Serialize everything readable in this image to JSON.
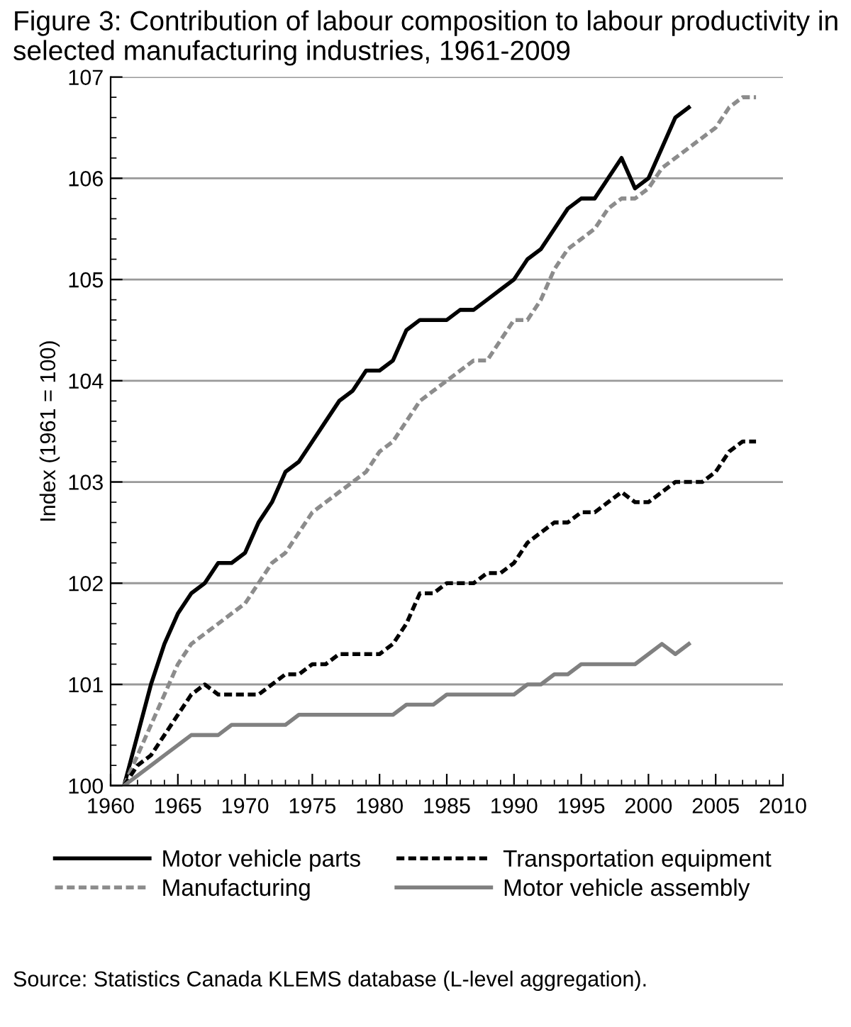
{
  "chart_data": {
    "type": "line",
    "title": "Figure 3: Contribution of labour composition to labour productivity in selected manufacturing industries, 1961-2009",
    "ylabel": "Index (1961 = 100)",
    "xlim": [
      1960,
      2010
    ],
    "xticks": [
      1960,
      1965,
      1970,
      1975,
      1980,
      1985,
      1990,
      1995,
      2000,
      2005,
      2010
    ],
    "ylim": [
      100,
      107
    ],
    "yticks": [
      100,
      101,
      102,
      103,
      104,
      105,
      106,
      107
    ],
    "grid": "y",
    "legend": "bottom",
    "annotations": [
      "Source: Statistics Canada KLEMS database (L-level aggregation)."
    ],
    "series": [
      {
        "name": "Motor vehicle parts",
        "color": "#000000",
        "line_style": "solid",
        "x": [
          1961,
          1962,
          1963,
          1964,
          1965,
          1966,
          1967,
          1968,
          1969,
          1970,
          1971,
          1972,
          1973,
          1974,
          1975,
          1976,
          1977,
          1978,
          1979,
          1980,
          1981,
          1982,
          1983,
          1984,
          1985,
          1986,
          1987,
          1988,
          1989,
          1990,
          1991,
          1992,
          1993,
          1994,
          1995,
          1996,
          1997,
          1998,
          1999,
          2000,
          2001,
          2002,
          2003
        ],
        "values": [
          100,
          100.5,
          101.0,
          101.4,
          101.7,
          101.9,
          102.0,
          102.2,
          102.2,
          102.3,
          102.6,
          102.8,
          103.1,
          103.2,
          103.4,
          103.6,
          103.8,
          103.9,
          104.1,
          104.1,
          104.2,
          104.5,
          104.6,
          104.6,
          104.6,
          104.7,
          104.7,
          104.8,
          104.9,
          105.0,
          105.2,
          105.3,
          105.5,
          105.7,
          105.8,
          105.8,
          106.0,
          106.2,
          105.9,
          106.0,
          106.3,
          106.6,
          106.7
        ]
      },
      {
        "name": "Manufacturing",
        "color": "#8c8c8c",
        "line_style": "dashed",
        "x": [
          1961,
          1962,
          1963,
          1964,
          1965,
          1966,
          1967,
          1968,
          1969,
          1970,
          1971,
          1972,
          1973,
          1974,
          1975,
          1976,
          1977,
          1978,
          1979,
          1980,
          1981,
          1982,
          1983,
          1984,
          1985,
          1986,
          1987,
          1988,
          1989,
          1990,
          1991,
          1992,
          1993,
          1994,
          1995,
          1996,
          1997,
          1998,
          1999,
          2000,
          2001,
          2002,
          2003,
          2004,
          2005,
          2006,
          2007,
          2008
        ],
        "values": [
          100,
          100.3,
          100.6,
          100.9,
          101.2,
          101.4,
          101.5,
          101.6,
          101.7,
          101.8,
          102.0,
          102.2,
          102.3,
          102.5,
          102.7,
          102.8,
          102.9,
          103.0,
          103.1,
          103.3,
          103.4,
          103.6,
          103.8,
          103.9,
          104.0,
          104.1,
          104.2,
          104.2,
          104.4,
          104.6,
          104.6,
          104.8,
          105.1,
          105.3,
          105.4,
          105.5,
          105.7,
          105.8,
          105.8,
          105.9,
          106.1,
          106.2,
          106.3,
          106.4,
          106.5,
          106.7,
          106.8,
          106.8
        ]
      },
      {
        "name": "Transportation equipment",
        "color": "#000000",
        "line_style": "dashed",
        "x": [
          1961,
          1962,
          1963,
          1964,
          1965,
          1966,
          1967,
          1968,
          1969,
          1970,
          1971,
          1972,
          1973,
          1974,
          1975,
          1976,
          1977,
          1978,
          1979,
          1980,
          1981,
          1982,
          1983,
          1984,
          1985,
          1986,
          1987,
          1988,
          1989,
          1990,
          1991,
          1992,
          1993,
          1994,
          1995,
          1996,
          1997,
          1998,
          1999,
          2000,
          2001,
          2002,
          2003,
          2004,
          2005,
          2006,
          2007,
          2008
        ],
        "values": [
          100,
          100.2,
          100.3,
          100.5,
          100.7,
          100.9,
          101.0,
          100.9,
          100.9,
          100.9,
          100.9,
          101.0,
          101.1,
          101.1,
          101.2,
          101.2,
          101.3,
          101.3,
          101.3,
          101.3,
          101.4,
          101.6,
          101.9,
          101.9,
          102.0,
          102.0,
          102.0,
          102.1,
          102.1,
          102.2,
          102.4,
          102.5,
          102.6,
          102.6,
          102.7,
          102.7,
          102.8,
          102.9,
          102.8,
          102.8,
          102.9,
          103.0,
          103.0,
          103.0,
          103.1,
          103.3,
          103.4,
          103.4
        ]
      },
      {
        "name": "Motor vehicle assembly",
        "color": "#808080",
        "line_style": "solid",
        "x": [
          1961,
          1962,
          1963,
          1964,
          1965,
          1966,
          1967,
          1968,
          1969,
          1970,
          1971,
          1972,
          1973,
          1974,
          1975,
          1976,
          1977,
          1978,
          1979,
          1980,
          1981,
          1982,
          1983,
          1984,
          1985,
          1986,
          1987,
          1988,
          1989,
          1990,
          1991,
          1992,
          1993,
          1994,
          1995,
          1996,
          1997,
          1998,
          1999,
          2000,
          2001,
          2002,
          2003
        ],
        "values": [
          100,
          100.1,
          100.2,
          100.3,
          100.4,
          100.5,
          100.5,
          100.5,
          100.6,
          100.6,
          100.6,
          100.6,
          100.6,
          100.7,
          100.7,
          100.7,
          100.7,
          100.7,
          100.7,
          100.7,
          100.7,
          100.8,
          100.8,
          100.8,
          100.9,
          100.9,
          100.9,
          100.9,
          100.9,
          100.9,
          101.0,
          101.0,
          101.1,
          101.1,
          101.2,
          101.2,
          101.2,
          101.2,
          101.2,
          101.3,
          101.4,
          101.3,
          101.4
        ]
      }
    ]
  }
}
